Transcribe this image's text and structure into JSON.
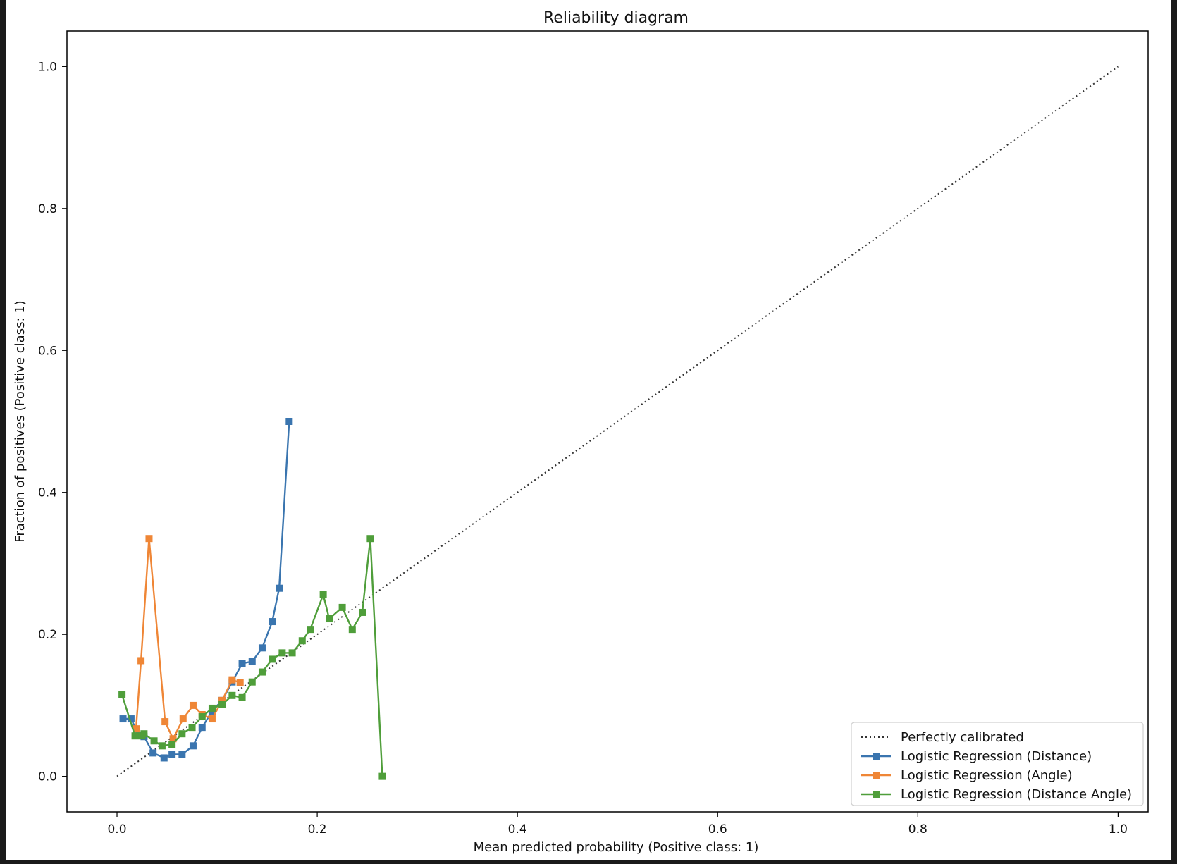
{
  "chart_data": {
    "type": "line",
    "title": "Reliability diagram",
    "xlabel": "Mean predicted probability (Positive class: 1)",
    "ylabel": "Fraction of positives (Positive class: 1)",
    "xlim": [
      -0.05,
      1.03
    ],
    "ylim": [
      -0.05,
      1.05
    ],
    "xticks": [
      0.0,
      0.2,
      0.4,
      0.6,
      0.8,
      1.0
    ],
    "yticks": [
      0.0,
      0.2,
      0.4,
      0.6,
      0.8,
      1.0
    ],
    "xtick_labels": [
      "0.0",
      "0.2",
      "0.4",
      "0.6",
      "0.8",
      "1.0"
    ],
    "ytick_labels": [
      "0.0",
      "0.2",
      "0.4",
      "0.6",
      "0.8",
      "1.0"
    ],
    "grid": false,
    "legend_position": "bottom-right",
    "series": [
      {
        "name": "Perfectly calibrated",
        "color": "#333333",
        "style": "dotted",
        "marker": "none",
        "x": [
          0.0,
          1.0
        ],
        "y": [
          0.0,
          1.0
        ]
      },
      {
        "name": "Logistic Regression (Distance)",
        "color": "#3a75af",
        "style": "solid",
        "marker": "square",
        "x": [
          0.006,
          0.014,
          0.022,
          0.027,
          0.036,
          0.047,
          0.055,
          0.065,
          0.076,
          0.085,
          0.095,
          0.105,
          0.115,
          0.125,
          0.135,
          0.145,
          0.155,
          0.162,
          0.172
        ],
        "y": [
          0.081,
          0.081,
          0.058,
          0.056,
          0.033,
          0.026,
          0.031,
          0.031,
          0.043,
          0.069,
          0.092,
          0.107,
          0.133,
          0.159,
          0.162,
          0.181,
          0.218,
          0.265,
          0.5
        ]
      },
      {
        "name": "Logistic Regression (Angle)",
        "color": "#ef8636",
        "style": "solid",
        "marker": "square",
        "x": [
          0.019,
          0.024,
          0.032,
          0.048,
          0.056,
          0.066,
          0.076,
          0.085,
          0.095,
          0.105,
          0.115,
          0.123
        ],
        "y": [
          0.067,
          0.163,
          0.335,
          0.077,
          0.053,
          0.081,
          0.1,
          0.087,
          0.081,
          0.107,
          0.136,
          0.132
        ]
      },
      {
        "name": "Logistic Regression (Distance Angle)",
        "color": "#4f9e3a",
        "style": "solid",
        "marker": "square",
        "x": [
          0.005,
          0.018,
          0.025,
          0.027,
          0.037,
          0.045,
          0.055,
          0.065,
          0.075,
          0.085,
          0.095,
          0.105,
          0.115,
          0.125,
          0.135,
          0.145,
          0.155,
          0.165,
          0.175,
          0.185,
          0.193,
          0.206,
          0.212,
          0.225,
          0.235,
          0.245,
          0.253,
          0.265
        ],
        "y": [
          0.115,
          0.057,
          0.057,
          0.06,
          0.05,
          0.043,
          0.045,
          0.06,
          0.069,
          0.084,
          0.096,
          0.101,
          0.114,
          0.111,
          0.133,
          0.147,
          0.165,
          0.174,
          0.174,
          0.191,
          0.207,
          0.256,
          0.222,
          0.238,
          0.207,
          0.231,
          0.335,
          0.0
        ]
      }
    ]
  }
}
